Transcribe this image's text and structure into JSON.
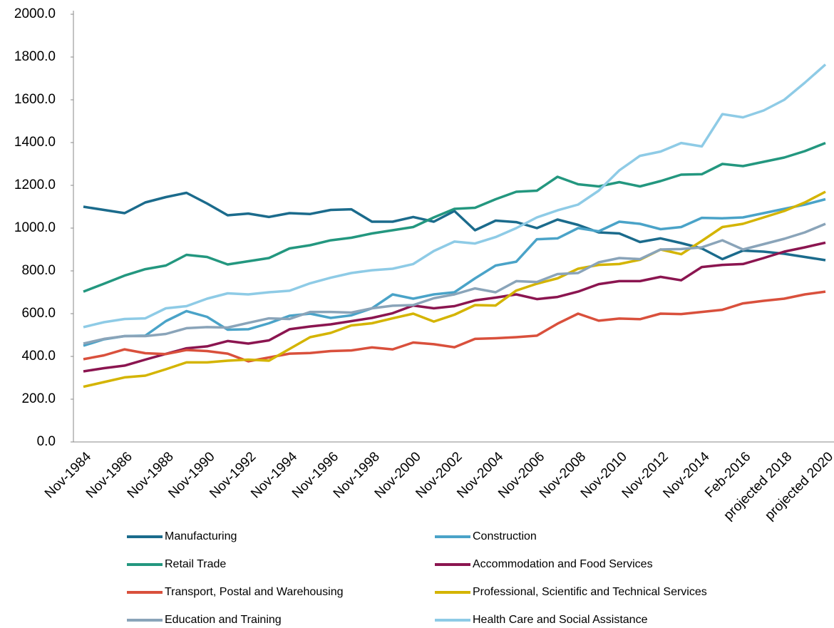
{
  "chart_data": {
    "type": "line",
    "categories": [
      "Nov-1984",
      null,
      "Nov-1986",
      null,
      "Nov-1988",
      null,
      "Nov-1990",
      null,
      "Nov-1992",
      null,
      "Nov-1994",
      null,
      "Nov-1996",
      null,
      "Nov-1998",
      null,
      "Nov-2000",
      null,
      "Nov-2002",
      null,
      "Nov-2004",
      null,
      "Nov-2006",
      null,
      "Nov-2008",
      null,
      "Nov-2010",
      null,
      "Nov-2012",
      null,
      "Nov-2014",
      null,
      "Feb-2016",
      null,
      "projected 2018",
      null,
      "projected 2020"
    ],
    "ylim": [
      0,
      2000
    ],
    "yticks": [
      {
        "value": 0,
        "label": "0.0"
      },
      {
        "value": 200,
        "label": "200.0"
      },
      {
        "value": 400,
        "label": "400.0"
      },
      {
        "value": 600,
        "label": "600.0"
      },
      {
        "value": 800,
        "label": "800.0"
      },
      {
        "value": 1000,
        "label": "1000.0"
      },
      {
        "value": 1200,
        "label": "1200.0"
      },
      {
        "value": 1400,
        "label": "1400.0"
      },
      {
        "value": 1600,
        "label": "1600.0"
      },
      {
        "value": 1800,
        "label": "1800.0"
      },
      {
        "value": 2000,
        "label": "2000.0"
      }
    ],
    "grid": false,
    "legend": "bottom",
    "series": [
      {
        "name": "Manufacturing",
        "color": "#1b6b8c",
        "values": [
          1100,
          1085,
          1070,
          1120,
          1145,
          1165,
          1115,
          1060,
          1068,
          1052,
          1070,
          1066,
          1085,
          1088,
          1030,
          1030,
          1052,
          1030,
          1080,
          990,
          1035,
          1028,
          1000,
          1040,
          1015,
          980,
          975,
          935,
          952,
          930,
          905,
          855,
          895,
          890,
          880,
          865,
          850
        ]
      },
      {
        "name": "Construction",
        "color": "#4aa3c8",
        "values": [
          450,
          480,
          495,
          497,
          565,
          612,
          585,
          525,
          527,
          555,
          590,
          600,
          580,
          592,
          625,
          690,
          670,
          690,
          700,
          765,
          825,
          843,
          948,
          952,
          1000,
          985,
          1030,
          1020,
          995,
          1005,
          1048,
          1046,
          1050,
          1070,
          1090,
          1110,
          1135
        ]
      },
      {
        "name": "Retail Trade",
        "color": "#23977f",
        "values": [
          703,
          740,
          778,
          808,
          825,
          875,
          865,
          830,
          845,
          860,
          905,
          920,
          943,
          955,
          975,
          990,
          1005,
          1050,
          1090,
          1095,
          1135,
          1170,
          1175,
          1240,
          1205,
          1195,
          1215,
          1195,
          1220,
          1250,
          1252,
          1300,
          1290,
          1310,
          1330,
          1360,
          1398
        ]
      },
      {
        "name": "Accommodation and Food Services",
        "color": "#8b1550",
        "values": [
          330,
          345,
          357,
          385,
          412,
          438,
          447,
          472,
          460,
          475,
          527,
          540,
          550,
          565,
          580,
          602,
          638,
          625,
          635,
          662,
          675,
          690,
          668,
          678,
          703,
          738,
          752,
          752,
          772,
          756,
          818,
          828,
          832,
          860,
          890,
          910,
          932
        ]
      },
      {
        "name": "Transport, Postal and Warehousing",
        "color": "#d9503c",
        "values": [
          387,
          405,
          433,
          415,
          411,
          430,
          425,
          413,
          377,
          395,
          413,
          416,
          425,
          428,
          442,
          433,
          465,
          457,
          443,
          482,
          485,
          490,
          497,
          553,
          600,
          567,
          577,
          574,
          600,
          598,
          608,
          618,
          648,
          660,
          670,
          690,
          703
        ]
      },
      {
        "name": "Professional, Scientific and Technical Services",
        "color": "#d4b400",
        "values": [
          258,
          280,
          302,
          310,
          340,
          372,
          372,
          380,
          385,
          380,
          435,
          490,
          510,
          545,
          555,
          578,
          600,
          563,
          595,
          640,
          638,
          708,
          740,
          765,
          810,
          828,
          832,
          852,
          900,
          878,
          940,
          1005,
          1020,
          1050,
          1080,
          1120,
          1170
        ]
      },
      {
        "name": "Education and Training",
        "color": "#8aa4b9",
        "values": [
          460,
          482,
          495,
          495,
          505,
          532,
          537,
          535,
          557,
          578,
          575,
          608,
          608,
          605,
          625,
          637,
          640,
          672,
          690,
          718,
          700,
          752,
          748,
          785,
          790,
          840,
          860,
          855,
          900,
          902,
          910,
          943,
          900,
          925,
          950,
          980,
          1020
        ]
      },
      {
        "name": "Health Care and Social Assistance",
        "color": "#8ecbe6",
        "values": [
          537,
          560,
          575,
          578,
          625,
          635,
          670,
          695,
          690,
          700,
          707,
          742,
          768,
          790,
          803,
          810,
          832,
          893,
          937,
          928,
          958,
          1000,
          1050,
          1083,
          1110,
          1175,
          1270,
          1338,
          1358,
          1398,
          1382,
          1533,
          1518,
          1550,
          1600,
          1680,
          1765
        ]
      }
    ]
  }
}
